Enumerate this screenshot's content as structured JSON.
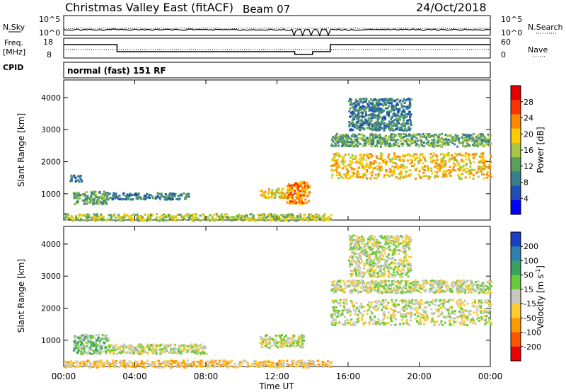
{
  "header": {
    "site": "Christmas Valley East (fitACF)",
    "beam": "Beam 07",
    "date": "24/Oct/2018"
  },
  "top_panels": {
    "nsky_label": "N.Sky",
    "nsearch_label": "N.Search",
    "noise_ticks": [
      "10^5",
      "10^0"
    ],
    "freq_label_1": "Freq.",
    "freq_label_2": "[MHz]",
    "freq_ticks": [
      "18",
      "8"
    ],
    "nave_label": "Nave",
    "nave_ticks": [
      "60",
      "0"
    ],
    "cpid_label": "CPID",
    "cpid_text": "normal (fast) 151 RF"
  },
  "chart_data": [
    {
      "type": "heatmap",
      "title": "",
      "xlabel": "Time UT",
      "ylabel": "Slant Range [km]",
      "x_tick_labels": [
        "00:00",
        "04:00",
        "08:00",
        "12:00",
        "16:00",
        "20:00",
        "00:00"
      ],
      "x_range_hours": [
        0,
        24
      ],
      "y_tick_labels": [
        "1000",
        "2000",
        "3000",
        "4000"
      ],
      "ylim": [
        180,
        4550
      ],
      "colorbar": {
        "label": "Power [dB]",
        "ticks": [
          "4",
          "8",
          "12",
          "16",
          "20",
          "24",
          "28"
        ],
        "range": [
          0,
          32
        ],
        "colors": [
          "#0000ff",
          "#1f4fb4",
          "#3a7f8e",
          "#5aa05a",
          "#a8c840",
          "#ffcc00",
          "#ff8800",
          "#ff3300",
          "#e60000"
        ]
      },
      "regions": [
        {
          "t_start": 0.0,
          "t_end": 15.0,
          "range_start": 180,
          "range_end": 400,
          "value": 14
        },
        {
          "t_start": 0.3,
          "t_end": 1.0,
          "range_start": 1400,
          "range_end": 1600,
          "value": 8
        },
        {
          "t_start": 0.5,
          "t_end": 2.5,
          "range_start": 700,
          "range_end": 1100,
          "value": 10
        },
        {
          "t_start": 2.5,
          "t_end": 7.0,
          "range_start": 850,
          "range_end": 1050,
          "value": 8
        },
        {
          "t_start": 11.0,
          "t_end": 12.8,
          "range_start": 900,
          "range_end": 1200,
          "value": 18
        },
        {
          "t_start": 12.5,
          "t_end": 13.8,
          "range_start": 700,
          "range_end": 1400,
          "value": 22
        },
        {
          "t_start": 15.0,
          "t_end": 24.0,
          "range_start": 1500,
          "range_end": 2300,
          "value": 20
        },
        {
          "t_start": 15.0,
          "t_end": 24.0,
          "range_start": 2500,
          "range_end": 2900,
          "value": 13
        },
        {
          "t_start": 16.0,
          "t_end": 19.5,
          "range_start": 3000,
          "range_end": 4000,
          "value": 7
        }
      ]
    },
    {
      "type": "heatmap",
      "title": "",
      "xlabel": "Time UT",
      "ylabel": "Slant Range [km]",
      "x_tick_labels": [
        "00:00",
        "04:00",
        "08:00",
        "12:00",
        "16:00",
        "20:00",
        "00:00"
      ],
      "x_range_hours": [
        0,
        24
      ],
      "y_tick_labels": [
        "1000",
        "2000",
        "3000",
        "4000"
      ],
      "ylim": [
        180,
        4550
      ],
      "colorbar": {
        "label": "Velocity [m s^-1]",
        "ticks": [
          "200",
          "100",
          "50",
          "15",
          "-15",
          "-50",
          "-100",
          "-200"
        ],
        "colors": [
          "#1c3fc8",
          "#2f7fb0",
          "#39a060",
          "#6acb3a",
          "#c8c8c0",
          "#ffcc33",
          "#ff9900",
          "#ff5500",
          "#ee0000"
        ]
      },
      "regions": [
        {
          "t_start": 0.0,
          "t_end": 15.0,
          "range_start": 180,
          "range_end": 400,
          "value": -30
        },
        {
          "t_start": 0.5,
          "t_end": 2.5,
          "range_start": 600,
          "range_end": 1200,
          "value": 30
        },
        {
          "t_start": 2.5,
          "t_end": 8.0,
          "range_start": 600,
          "range_end": 900,
          "value": -10
        },
        {
          "t_start": 11.0,
          "t_end": 13.5,
          "range_start": 800,
          "range_end": 1200,
          "value": 0
        },
        {
          "t_start": 15.0,
          "t_end": 24.0,
          "range_start": 1500,
          "range_end": 2300,
          "value": 0
        },
        {
          "t_start": 15.0,
          "t_end": 24.0,
          "range_start": 2500,
          "range_end": 2900,
          "value": 0
        },
        {
          "t_start": 16.0,
          "t_end": 19.5,
          "range_start": 3000,
          "range_end": 4300,
          "value": 0
        }
      ]
    }
  ]
}
